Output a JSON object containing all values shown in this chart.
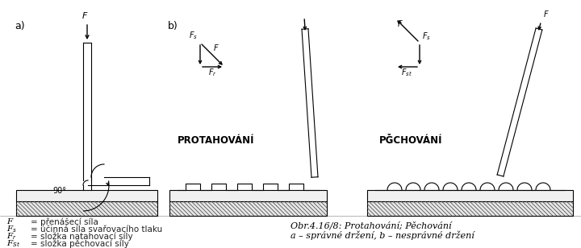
{
  "background_color": "#ffffff",
  "fig_width": 7.2,
  "fig_height": 3.08,
  "dpi": 100,
  "label_a": "a)",
  "label_b": "b)",
  "title_proto": "PROTAHOVÁNÍ",
  "title_pecho": "PĞCHOVÁNÍ",
  "legend_lines": [
    [
      "F",
      "= přenášecí síla"
    ],
    [
      "F$_s$",
      "= účinná síla svařovacího tlaku"
    ],
    [
      "F$_r$",
      "= složka natahovací síly"
    ],
    [
      "F$_{St}$",
      "= složka pěchovací síly"
    ]
  ],
  "caption_line1": "Obr.4.16/8: Protahování; Pěchování",
  "caption_line2": "a – správné držení, b – nesprávné držení",
  "line_color": "#000000",
  "text_color": "#222222"
}
